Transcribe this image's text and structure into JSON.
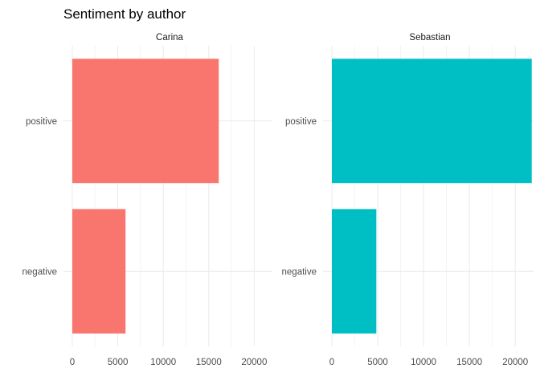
{
  "chart_data": {
    "type": "bar",
    "orientation": "horizontal",
    "title": "Sentiment by author",
    "xlabel": "",
    "ylabel": "",
    "categories": [
      "positive",
      "negative"
    ],
    "xlim": [
      0,
      22000
    ],
    "x_ticks": [
      0,
      5000,
      10000,
      15000,
      20000
    ],
    "x_tick_labels": [
      "0",
      "5000",
      "10000",
      "15000",
      "20000"
    ],
    "grid": true,
    "legend": "none",
    "facets": [
      {
        "label": "Carina",
        "color": "#F8766D",
        "values": [
          16100,
          5850
        ]
      },
      {
        "label": "Sebastian",
        "color": "#00BFC4",
        "values": [
          21800,
          4850
        ]
      }
    ]
  }
}
